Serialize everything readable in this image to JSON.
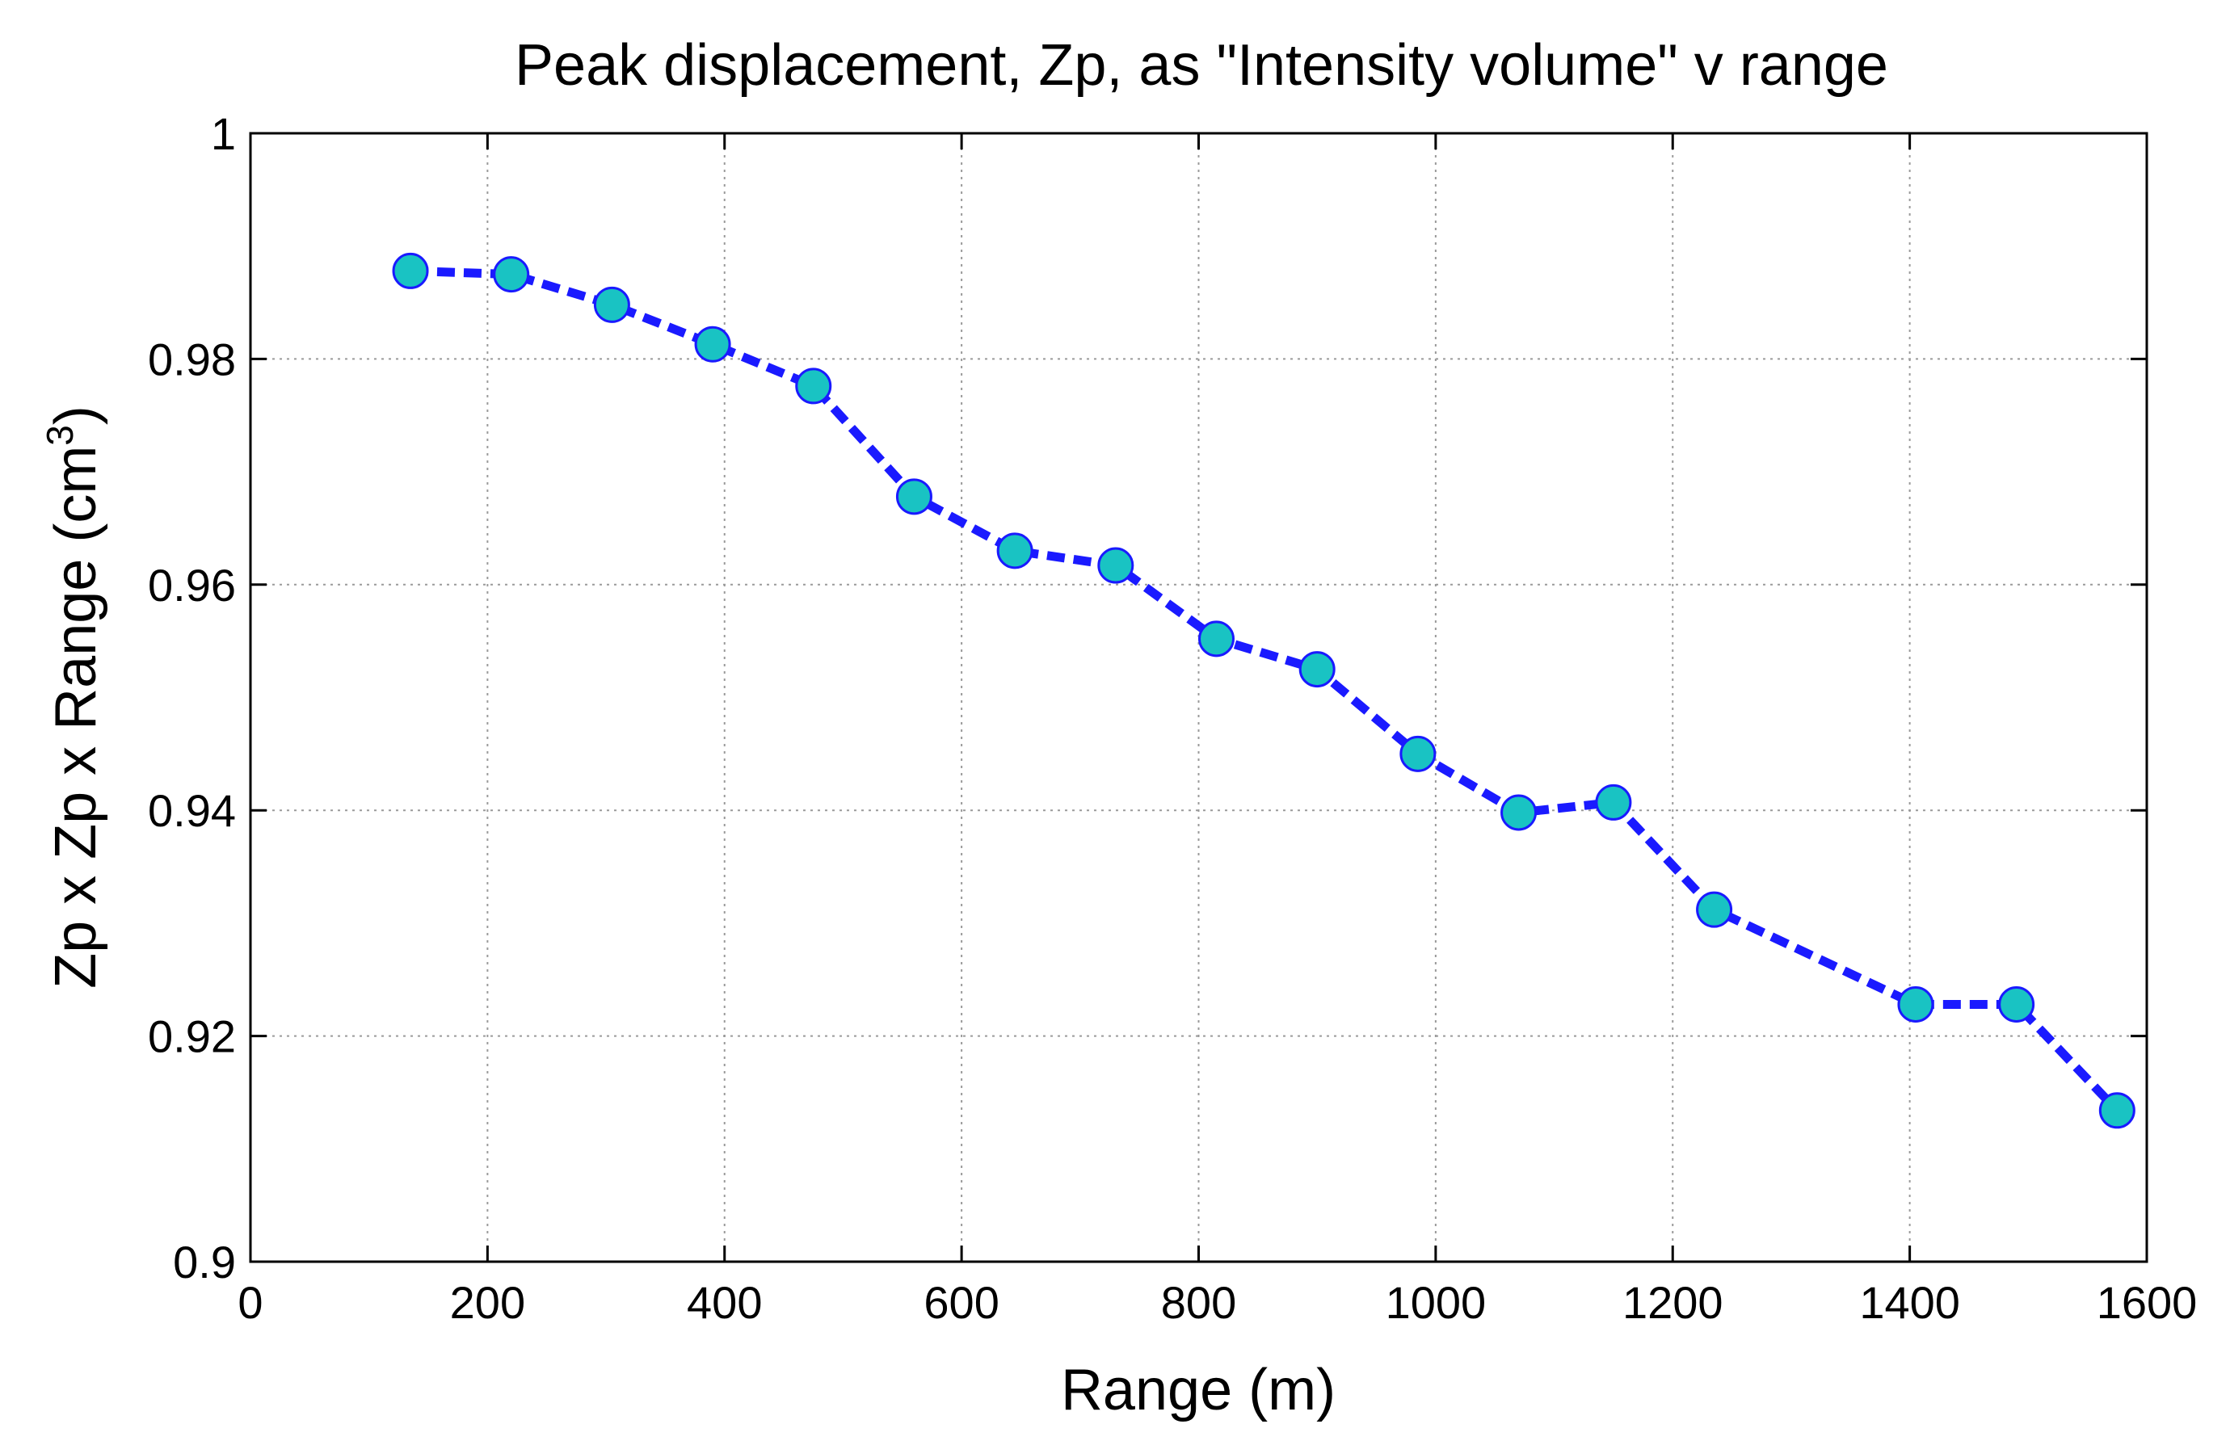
{
  "chart_data": {
    "type": "line",
    "title": "Peak displacement, Zp, as \"Intensity volume\" v range",
    "xlabel": "Range (m)",
    "ylabel": "Zp x Zp x Range (cm",
    "ylabel_superscript": "3",
    "ylabel_suffix": ")",
    "xlim": [
      0,
      1600
    ],
    "ylim": [
      0.9,
      1.0
    ],
    "xticks": [
      0,
      200,
      400,
      600,
      800,
      1000,
      1200,
      1400,
      1600
    ],
    "yticks": [
      0.9,
      0.92,
      0.94,
      0.96,
      0.98,
      1
    ],
    "xtick_labels": [
      "0",
      "200",
      "400",
      "600",
      "800",
      "1000",
      "1200",
      "1400",
      "1600"
    ],
    "ytick_labels": [
      "0.9",
      "0.92",
      "0.94",
      "0.96",
      "0.98",
      "1"
    ],
    "grid": true,
    "series": [
      {
        "line_color": "#1a1aff",
        "line_style": "dashed",
        "marker": "circle",
        "marker_fill": "#19c3c3",
        "marker_edge": "#1a1aff",
        "x": [
          135,
          220,
          305,
          390,
          475,
          560,
          645,
          730,
          815,
          900,
          985,
          1070,
          1150,
          1235,
          1405,
          1490,
          1575
        ],
        "y": [
          0.9878,
          0.9875,
          0.9848,
          0.9813,
          0.9776,
          0.9678,
          0.963,
          0.9617,
          0.9552,
          0.9525,
          0.945,
          0.9398,
          0.9407,
          0.9312,
          0.9228,
          0.9228,
          0.9134
        ]
      }
    ]
  }
}
